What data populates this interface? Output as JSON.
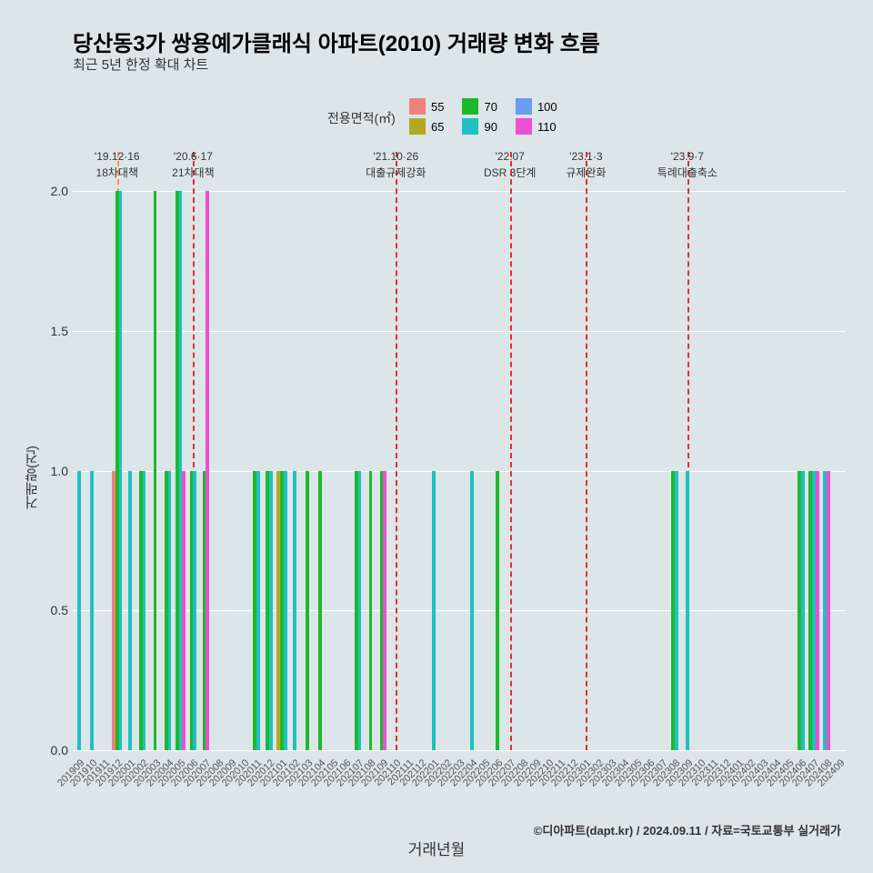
{
  "title": "당산동3가 쌍용예가클래식 아파트(2010) 거래량 변화 흐름",
  "subtitle": "최근 5년 한정 확대 차트",
  "legend_title": "전용면적(㎡)",
  "x_label": "거래년월",
  "y_label": "거래량(건)",
  "credit": "©디아파트(dapt.kr) / 2024.09.11 / 자료=국토교통부 실거래가",
  "chart": {
    "type": "bar",
    "background_color": "#dce5e8",
    "grid_color": "#ffffff",
    "ylim": [
      0,
      2.05
    ],
    "yticks": [
      0.0,
      0.5,
      1.0,
      1.5,
      2.0
    ],
    "categories": [
      "201909",
      "201910",
      "201911",
      "201912",
      "202001",
      "202002",
      "202003",
      "202004",
      "202005",
      "202006",
      "202007",
      "202008",
      "202009",
      "202010",
      "202011",
      "202012",
      "202101",
      "202102",
      "202103",
      "202104",
      "202105",
      "202106",
      "202107",
      "202108",
      "202109",
      "202110",
      "202111",
      "202112",
      "202201",
      "202202",
      "202203",
      "202204",
      "202205",
      "202206",
      "202207",
      "202208",
      "202209",
      "202210",
      "202211",
      "202212",
      "202301",
      "202302",
      "202303",
      "202304",
      "202305",
      "202306",
      "202307",
      "202308",
      "202309",
      "202310",
      "202311",
      "202312",
      "202401",
      "202402",
      "202403",
      "202404",
      "202405",
      "202406",
      "202407",
      "202408",
      "202409"
    ],
    "series": [
      {
        "name": "55",
        "color": "#f08080"
      },
      {
        "name": "65",
        "color": "#b5a820"
      },
      {
        "name": "70",
        "color": "#1eb82e"
      },
      {
        "name": "90",
        "color": "#1fc1c1"
      },
      {
        "name": "100",
        "color": "#6a9cf0"
      },
      {
        "name": "110",
        "color": "#ee4fd0"
      }
    ],
    "data": {
      "201909": {
        "90": 1
      },
      "201910": {
        "90": 1
      },
      "201912": {
        "55": 1,
        "70": 2,
        "90": 2
      },
      "202001": {
        "90": 1
      },
      "202002": {
        "70": 1,
        "90": 1
      },
      "202003": {
        "70": 2
      },
      "202004": {
        "70": 1,
        "90": 1
      },
      "202005": {
        "70": 2,
        "90": 2,
        "110": 1
      },
      "202006": {
        "70": 1,
        "90": 1
      },
      "202007": {
        "70": 1,
        "110": 2
      },
      "202011": {
        "70": 1,
        "90": 1
      },
      "202012": {
        "70": 1,
        "90": 1
      },
      "202101": {
        "65": 1,
        "70": 1,
        "90": 1
      },
      "202102": {
        "90": 1
      },
      "202103": {
        "70": 1
      },
      "202104": {
        "70": 1
      },
      "202107": {
        "70": 1,
        "90": 1
      },
      "202108": {
        "70": 1
      },
      "202109": {
        "70": 1,
        "110": 1
      },
      "202201": {
        "90": 1
      },
      "202204": {
        "90": 1
      },
      "202206": {
        "70": 1
      },
      "202308": {
        "70": 1,
        "90": 1
      },
      "202309": {
        "90": 1
      },
      "202406": {
        "70": 1,
        "90": 1
      },
      "202407": {
        "70": 1,
        "90": 1,
        "110": 1
      },
      "202408": {
        "90": 1,
        "110": 1
      }
    }
  },
  "annotations": [
    {
      "x": "201912",
      "color": "#ff8c5a",
      "line1": "'19.12·16",
      "line2": "18차대책"
    },
    {
      "x": "202006",
      "color": "#e03030",
      "line1": "'20.6·17",
      "line2": "21차대책"
    },
    {
      "x": "202110",
      "color": "#e03030",
      "line1": "'21.10·26",
      "line2": "대출규제강화"
    },
    {
      "x": "202207",
      "color": "#e03030",
      "line1": "'22.07",
      "line2": "DSR 3단계"
    },
    {
      "x": "202301",
      "color": "#e03030",
      "line1": "'23.1·3",
      "line2": "규제완화"
    },
    {
      "x": "202309",
      "color": "#e03030",
      "line1": "'23.9·7",
      "line2": "특례대출축소"
    }
  ]
}
